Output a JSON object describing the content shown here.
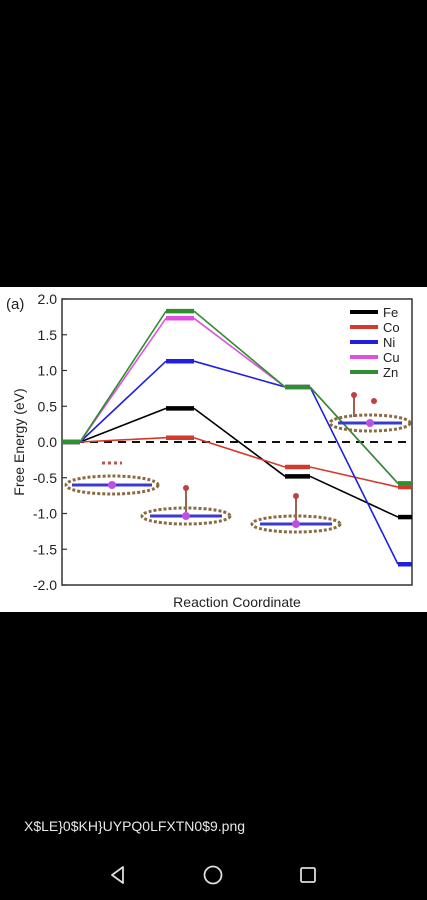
{
  "image_viewer": {
    "filename": "X$LE}0$KH}UYPQ0LFXTN0$9.png"
  },
  "navbar": {
    "back_icon": "triangle-back-icon",
    "home_icon": "circle-home-icon",
    "recents_icon": "square-recents-icon"
  },
  "chart_data": {
    "type": "line",
    "panel_label": "(a)",
    "xlabel": "Reaction Coordinate",
    "ylabel": "Free Energy (eV)",
    "ylim": [
      -2.0,
      2.0
    ],
    "yticks": [
      "2.0",
      "1.5",
      "1.0",
      "0.5",
      "0.0",
      "-0.5",
      "-1.0",
      "-1.5",
      "-2.0"
    ],
    "ytick_values": [
      2.0,
      1.5,
      1.0,
      0.5,
      0.0,
      -0.5,
      -1.0,
      -1.5,
      -2.0
    ],
    "reference_line": 0.0,
    "legend_position": "top-right",
    "series": [
      {
        "name": "Fe",
        "color": "#000000",
        "values": [
          0.0,
          0.47,
          -0.48,
          -1.05
        ]
      },
      {
        "name": "Co",
        "color": "#d33a2c",
        "values": [
          0.0,
          0.06,
          -0.35,
          -0.63
        ]
      },
      {
        "name": "Ni",
        "color": "#1f1fe0",
        "values": [
          0.0,
          1.13,
          0.77,
          -1.71
        ]
      },
      {
        "name": "Cu",
        "color": "#e050e0",
        "values": [
          0.0,
          1.73,
          0.77,
          -0.58
        ]
      },
      {
        "name": "Zn",
        "color": "#2f8f2f",
        "values": [
          0.0,
          1.83,
          0.77,
          -0.58
        ]
      }
    ]
  }
}
